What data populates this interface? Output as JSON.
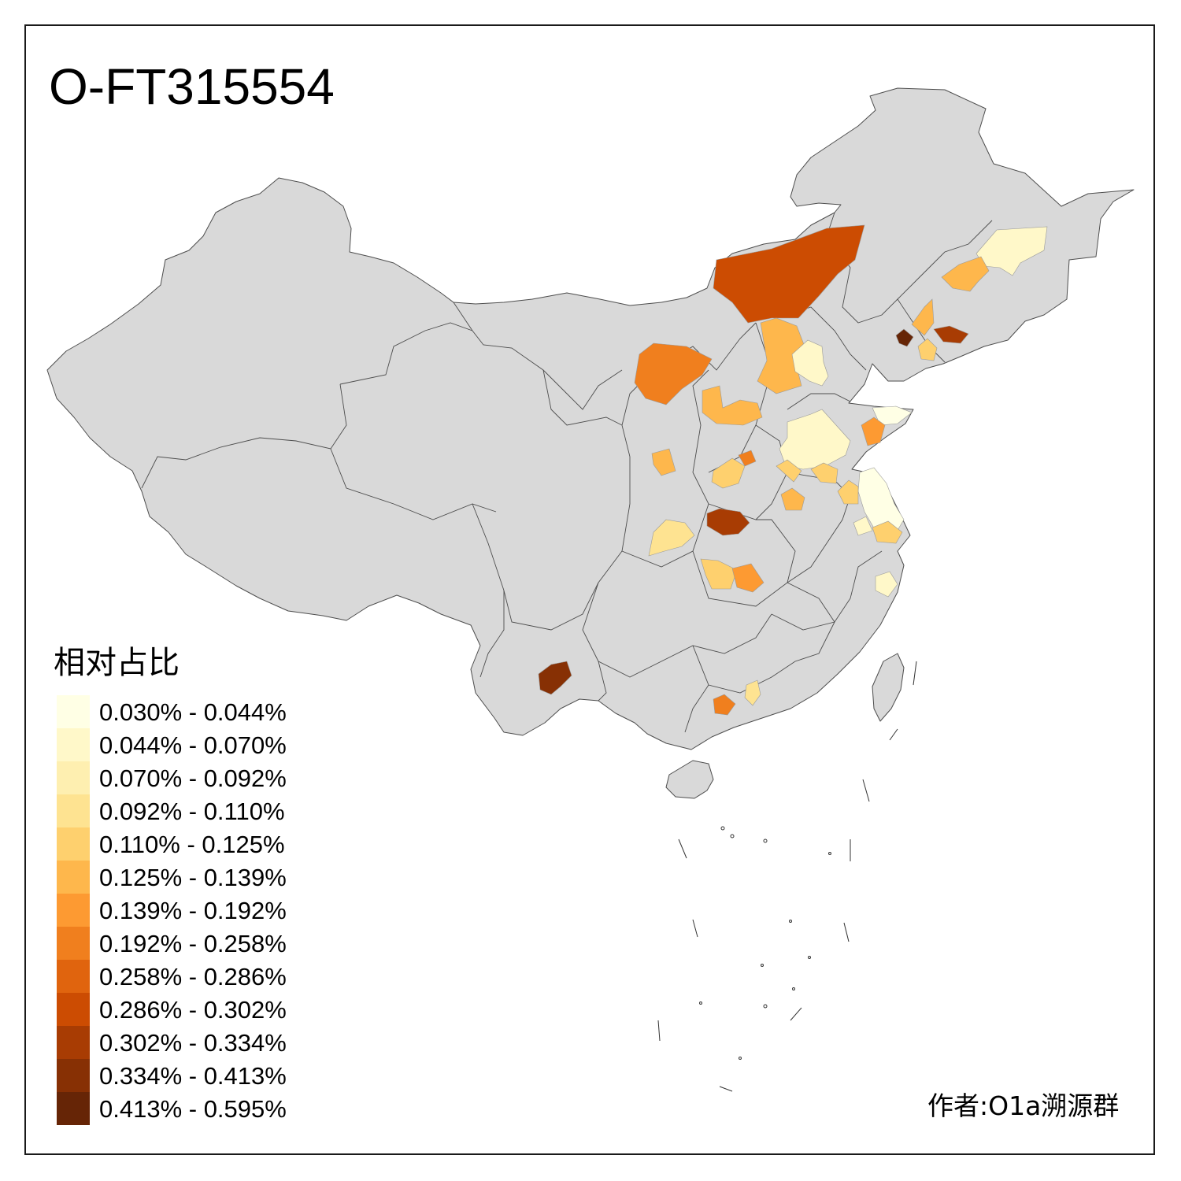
{
  "title": "O-FT315554",
  "legend": {
    "title": "相对占比",
    "bins": [
      {
        "label": "0.030% - 0.044%",
        "color": "#ffffe5"
      },
      {
        "label": "0.044% - 0.070%",
        "color": "#fff8c9"
      },
      {
        "label": "0.070% - 0.092%",
        "color": "#feefb0"
      },
      {
        "label": "0.092% - 0.110%",
        "color": "#fee391"
      },
      {
        "label": "0.110% - 0.125%",
        "color": "#fed06e"
      },
      {
        "label": "0.125% - 0.139%",
        "color": "#feb74c"
      },
      {
        "label": "0.139% - 0.192%",
        "color": "#fd9a32"
      },
      {
        "label": "0.192% - 0.258%",
        "color": "#f07f1e"
      },
      {
        "label": "0.258% - 0.286%",
        "color": "#e0640e"
      },
      {
        "label": "0.286% - 0.302%",
        "color": "#cc4c02"
      },
      {
        "label": "0.302% - 0.334%",
        "color": "#a83c03"
      },
      {
        "label": "0.334% - 0.413%",
        "color": "#873004"
      },
      {
        "label": "0.413% - 0.595%",
        "color": "#662506"
      }
    ]
  },
  "author": "作者:O1a溯源群",
  "colors": {
    "land": "#d9d9d9",
    "border": "#4d4d4d",
    "frame": "#1a1a1a"
  }
}
